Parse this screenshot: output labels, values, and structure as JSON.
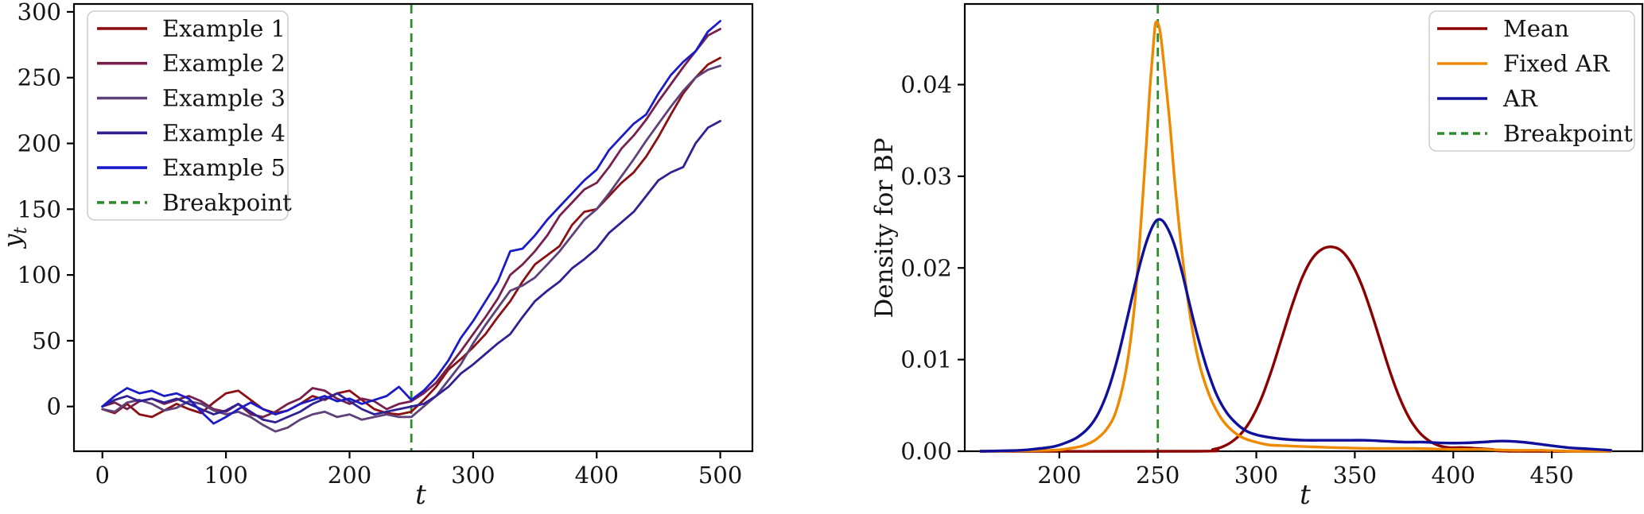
{
  "figure": {
    "background": "#ffffff",
    "text_color": "#141414",
    "spine_color": "#000000"
  },
  "chart_data": [
    {
      "type": "line",
      "title": "",
      "xlabel": "t",
      "ylabel": "y_t",
      "xlim": [
        -23,
        526
      ],
      "ylim": [
        -34,
        306
      ],
      "grid": false,
      "legend_position": "upper left",
      "x_ticks": [
        0,
        100,
        200,
        300,
        400,
        500
      ],
      "x_tick_labels": [
        "0",
        "100",
        "200",
        "300",
        "400",
        "500"
      ],
      "y_ticks": [
        0,
        50,
        100,
        150,
        200,
        250,
        300
      ],
      "y_tick_labels": [
        "0",
        "50",
        "100",
        "150",
        "200",
        "250",
        "300"
      ],
      "breakpoint": {
        "x": 250,
        "label": "Breakpoint",
        "color": "#2e8b2e"
      },
      "smooth": false,
      "series": [
        {
          "name": "Example 1",
          "color": "#8b1014",
          "x": [
            0,
            10,
            20,
            30,
            40,
            50,
            60,
            70,
            80,
            90,
            100,
            110,
            120,
            130,
            140,
            150,
            160,
            170,
            180,
            190,
            200,
            210,
            220,
            230,
            240,
            250,
            260,
            270,
            280,
            290,
            300,
            310,
            320,
            330,
            340,
            350,
            360,
            370,
            380,
            390,
            400,
            410,
            420,
            430,
            440,
            450,
            460,
            470,
            480,
            490,
            500
          ],
          "y": [
            -2,
            -5,
            2,
            -6,
            -8,
            -3,
            2,
            -2,
            -5,
            3,
            10,
            12,
            5,
            -2,
            -5,
            -3,
            2,
            8,
            5,
            10,
            12,
            5,
            -2,
            -5,
            -6,
            -4,
            5,
            15,
            28,
            36,
            45,
            55,
            68,
            80,
            95,
            108,
            115,
            122,
            138,
            148,
            150,
            160,
            170,
            178,
            190,
            205,
            222,
            238,
            250,
            260,
            265
          ]
        },
        {
          "name": "Example 2",
          "color": "#77204e",
          "x": [
            0,
            10,
            20,
            30,
            40,
            50,
            60,
            70,
            80,
            90,
            100,
            110,
            120,
            130,
            140,
            150,
            160,
            170,
            180,
            190,
            200,
            210,
            220,
            230,
            240,
            250,
            260,
            270,
            280,
            290,
            300,
            310,
            320,
            330,
            340,
            350,
            360,
            370,
            380,
            390,
            400,
            410,
            420,
            430,
            440,
            450,
            460,
            470,
            480,
            490,
            500
          ],
          "y": [
            0,
            3,
            -2,
            4,
            6,
            2,
            5,
            8,
            4,
            -2,
            -4,
            2,
            -6,
            -8,
            -4,
            2,
            6,
            14,
            12,
            6,
            2,
            6,
            4,
            -2,
            2,
            4,
            10,
            18,
            30,
            42,
            55,
            68,
            82,
            100,
            108,
            118,
            130,
            145,
            155,
            165,
            170,
            182,
            196,
            206,
            218,
            232,
            245,
            258,
            270,
            282,
            287
          ]
        },
        {
          "name": "Example 3",
          "color": "#5e4178",
          "x": [
            0,
            10,
            20,
            30,
            40,
            50,
            60,
            70,
            80,
            90,
            100,
            110,
            120,
            130,
            140,
            150,
            160,
            170,
            180,
            190,
            200,
            210,
            220,
            230,
            240,
            250,
            260,
            270,
            280,
            290,
            300,
            310,
            320,
            330,
            340,
            350,
            360,
            370,
            380,
            390,
            400,
            410,
            420,
            430,
            440,
            450,
            460,
            470,
            480,
            490,
            500
          ],
          "y": [
            -2,
            -4,
            3,
            5,
            2,
            -3,
            -1,
            4,
            2,
            -3,
            -6,
            -4,
            -8,
            -14,
            -19,
            -16,
            -10,
            -6,
            -4,
            -8,
            -6,
            -10,
            -8,
            -6,
            -8,
            -8,
            0,
            8,
            20,
            32,
            48,
            62,
            75,
            88,
            92,
            98,
            108,
            118,
            130,
            142,
            150,
            162,
            175,
            188,
            202,
            215,
            228,
            240,
            250,
            256,
            259
          ]
        },
        {
          "name": "Example 4",
          "color": "#2f2194",
          "x": [
            0,
            10,
            20,
            30,
            40,
            50,
            60,
            70,
            80,
            90,
            100,
            110,
            120,
            130,
            140,
            150,
            160,
            170,
            180,
            190,
            200,
            210,
            220,
            230,
            240,
            250,
            260,
            270,
            280,
            290,
            300,
            310,
            320,
            330,
            340,
            350,
            360,
            370,
            380,
            390,
            400,
            410,
            420,
            430,
            440,
            450,
            460,
            470,
            480,
            490,
            500
          ],
          "y": [
            0,
            5,
            8,
            4,
            6,
            3,
            6,
            2,
            -2,
            -6,
            -3,
            2,
            -4,
            -10,
            -12,
            -8,
            -4,
            2,
            6,
            10,
            4,
            -2,
            -6,
            -4,
            -2,
            0,
            2,
            8,
            15,
            25,
            32,
            40,
            48,
            55,
            68,
            80,
            88,
            95,
            105,
            112,
            120,
            132,
            140,
            148,
            160,
            172,
            178,
            182,
            200,
            212,
            217
          ]
        },
        {
          "name": "Example 5",
          "color": "#1b1bc8",
          "x": [
            0,
            10,
            20,
            30,
            40,
            50,
            60,
            70,
            80,
            90,
            100,
            110,
            120,
            130,
            140,
            150,
            160,
            170,
            180,
            190,
            200,
            210,
            220,
            230,
            240,
            250,
            260,
            270,
            280,
            290,
            300,
            310,
            320,
            330,
            340,
            350,
            360,
            370,
            380,
            390,
            400,
            410,
            420,
            430,
            440,
            450,
            460,
            470,
            480,
            490,
            500
          ],
          "y": [
            0,
            8,
            14,
            10,
            12,
            8,
            10,
            6,
            -4,
            -13,
            -8,
            -2,
            3,
            -2,
            -6,
            -3,
            2,
            5,
            8,
            4,
            6,
            2,
            5,
            8,
            15,
            5,
            12,
            22,
            35,
            52,
            65,
            80,
            95,
            118,
            120,
            130,
            142,
            152,
            162,
            172,
            180,
            195,
            205,
            215,
            222,
            238,
            252,
            262,
            270,
            285,
            293
          ]
        }
      ]
    },
    {
      "type": "line",
      "title": "",
      "xlabel": "t",
      "ylabel": "Density for BP",
      "xlim": [
        152,
        496
      ],
      "ylim": [
        0,
        0.0488
      ],
      "grid": false,
      "legend_position": "upper right",
      "x_ticks": [
        200,
        250,
        300,
        350,
        400,
        450
      ],
      "x_tick_labels": [
        "200",
        "250",
        "300",
        "350",
        "400",
        "450"
      ],
      "y_ticks": [
        0,
        0.01,
        0.02,
        0.03,
        0.04
      ],
      "y_tick_labels": [
        "0.00",
        "0.01",
        "0.02",
        "0.03",
        "0.04"
      ],
      "breakpoint": {
        "x": 250,
        "label": "Breakpoint",
        "color": "#2e8b2e"
      },
      "smooth": true,
      "series": [
        {
          "name": "Mean",
          "color": "#8b0000",
          "x": [
            160,
            270,
            278,
            283,
            288,
            293,
            298,
            303,
            308,
            313,
            318,
            323,
            328,
            333,
            338,
            343,
            348,
            353,
            358,
            363,
            368,
            373,
            378,
            383,
            388,
            393,
            398,
            405,
            412,
            420,
            428,
            480
          ],
          "y": [
            0,
            0,
            0.0002,
            0.0005,
            0.0011,
            0.0021,
            0.0037,
            0.006,
            0.009,
            0.0124,
            0.0158,
            0.0188,
            0.0209,
            0.022,
            0.0223,
            0.0219,
            0.0206,
            0.0184,
            0.0154,
            0.012,
            0.0086,
            0.0057,
            0.0035,
            0.002,
            0.0011,
            0.0006,
            0.0004,
            0.0004,
            0.0003,
            0.0002,
            0,
            0
          ]
        },
        {
          "name": "Fixed AR",
          "color": "#ef8a00",
          "x": [
            160,
            195,
            205,
            212,
            218,
            224,
            229,
            234,
            238,
            241,
            244,
            246,
            248,
            249,
            251,
            253,
            256,
            259,
            263,
            267,
            271,
            276,
            281,
            286,
            292,
            298,
            306,
            315,
            325,
            340,
            360,
            380,
            400,
            415,
            430,
            445,
            460,
            480
          ],
          "y": [
            0,
            0.0001,
            0.0003,
            0.0006,
            0.0012,
            0.0024,
            0.0045,
            0.009,
            0.0155,
            0.0235,
            0.033,
            0.0396,
            0.045,
            0.0468,
            0.046,
            0.0424,
            0.036,
            0.0285,
            0.0203,
            0.014,
            0.0096,
            0.0062,
            0.004,
            0.0026,
            0.0016,
            0.0011,
            0.0007,
            0.0006,
            0.0005,
            0.0004,
            0.0003,
            0.0003,
            0.0002,
            0.0002,
            0.0001,
            0.0001,
            0,
            0
          ]
        },
        {
          "name": "AR",
          "color": "#10109b",
          "x": [
            160,
            180,
            190,
            197,
            203,
            209,
            215,
            220,
            225,
            230,
            235,
            240,
            244,
            248,
            251,
            254,
            258,
            262,
            266,
            270,
            275,
            280,
            285,
            290,
            295,
            300,
            307,
            315,
            325,
            335,
            345,
            355,
            365,
            375,
            385,
            395,
            405,
            415,
            422,
            428,
            435,
            443,
            450,
            458,
            465,
            473,
            480
          ],
          "y": [
            0,
            0.0001,
            0.0003,
            0.0005,
            0.0009,
            0.0015,
            0.0026,
            0.0042,
            0.0068,
            0.0105,
            0.015,
            0.0196,
            0.0227,
            0.0248,
            0.0253,
            0.0247,
            0.0228,
            0.0198,
            0.0162,
            0.0127,
            0.009,
            0.0061,
            0.0042,
            0.003,
            0.0022,
            0.0018,
            0.0015,
            0.0013,
            0.0012,
            0.0012,
            0.0012,
            0.0012,
            0.0011,
            0.001,
            0.001,
            0.0009,
            0.0009,
            0.001,
            0.0011,
            0.0011,
            0.001,
            0.0008,
            0.0006,
            0.0004,
            0.0003,
            0.0002,
            0.0001
          ]
        }
      ]
    }
  ]
}
